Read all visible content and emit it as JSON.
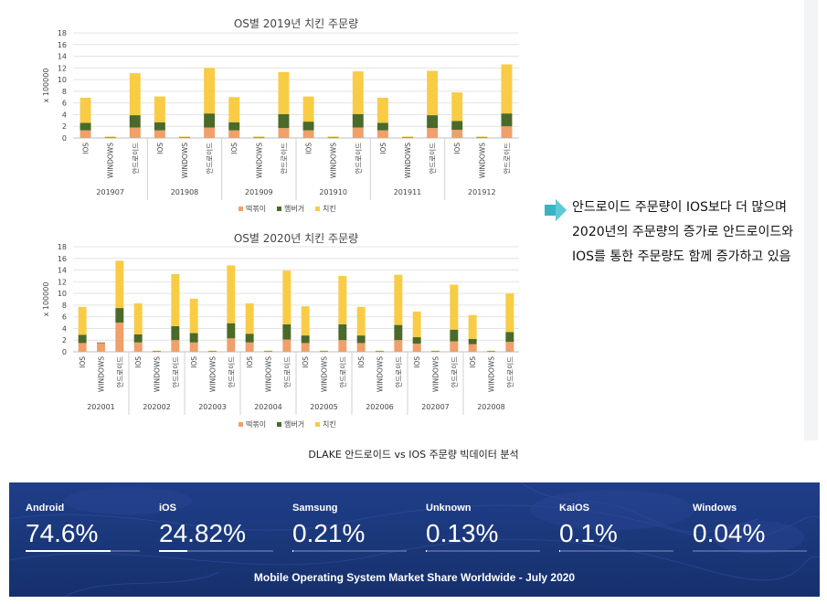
{
  "chart_data": [
    {
      "type": "bar",
      "stacked": true,
      "title": "OS별 2019년 치킨 주문량",
      "ylabel": "x 100000",
      "ylim": [
        0,
        18
      ],
      "yticks": [
        0,
        2,
        4,
        6,
        8,
        10,
        12,
        14,
        16,
        18
      ],
      "grid": true,
      "legend_position": "bottom",
      "groups": [
        "201907",
        "201908",
        "201909",
        "201910",
        "201911",
        "201912"
      ],
      "subcategories": [
        "IOS",
        "WINDOWS",
        "안드로이드"
      ],
      "series": [
        {
          "name": "떡볶이",
          "color": "#f0a06a",
          "values": [
            [
              1.3,
              0.05,
              1.8
            ],
            [
              1.3,
              0.05,
              1.8
            ],
            [
              1.3,
              0.05,
              1.7
            ],
            [
              1.3,
              0.05,
              1.8
            ],
            [
              1.3,
              0.05,
              1.7
            ],
            [
              1.4,
              0.05,
              2.0
            ]
          ]
        },
        {
          "name": "햄버거",
          "color": "#4a6a2a",
          "values": [
            [
              1.3,
              0.05,
              2.1
            ],
            [
              1.4,
              0.05,
              2.4
            ],
            [
              1.4,
              0.05,
              2.4
            ],
            [
              1.5,
              0.05,
              2.3
            ],
            [
              1.3,
              0.05,
              2.2
            ],
            [
              1.5,
              0.05,
              2.2
            ]
          ]
        },
        {
          "name": "치킨",
          "color": "#f8cc45",
          "values": [
            [
              4.3,
              0.15,
              7.2
            ],
            [
              4.4,
              0.15,
              7.8
            ],
            [
              4.3,
              0.15,
              7.2
            ],
            [
              4.3,
              0.15,
              7.3
            ],
            [
              4.3,
              0.15,
              7.6
            ],
            [
              4.9,
              0.15,
              8.4
            ]
          ]
        }
      ]
    },
    {
      "type": "bar",
      "stacked": true,
      "title": "OS별 2020년 치킨 주문량",
      "ylabel": "x 100000",
      "ylim": [
        0,
        18
      ],
      "yticks": [
        0,
        2,
        4,
        6,
        8,
        10,
        12,
        14,
        16,
        18
      ],
      "grid": true,
      "legend_position": "bottom",
      "groups": [
        "202001",
        "202002",
        "202003",
        "202004",
        "202005",
        "202006",
        "202007",
        "202008"
      ],
      "subcategories": [
        "IOS",
        "WINDOWS",
        "안드로이드"
      ],
      "series": [
        {
          "name": "떡볶이",
          "color": "#f0a06a",
          "values": [
            [
              1.5,
              1.5,
              5.0
            ],
            [
              1.6,
              0.05,
              2.0
            ],
            [
              1.6,
              0.05,
              2.3
            ],
            [
              1.6,
              0.05,
              2.1
            ],
            [
              1.5,
              0.05,
              2.0
            ],
            [
              1.5,
              0.05,
              2.0
            ],
            [
              1.4,
              0.05,
              1.8
            ],
            [
              1.3,
              0.05,
              1.7
            ]
          ]
        },
        {
          "name": "햄버거",
          "color": "#4a6a2a",
          "values": [
            [
              1.4,
              0.1,
              2.5
            ],
            [
              1.4,
              0.05,
              2.4
            ],
            [
              1.6,
              0.05,
              2.6
            ],
            [
              1.5,
              0.05,
              2.6
            ],
            [
              1.3,
              0.05,
              2.7
            ],
            [
              1.3,
              0.05,
              2.6
            ],
            [
              1.1,
              0.05,
              2.0
            ],
            [
              0.9,
              0.05,
              1.7
            ]
          ]
        },
        {
          "name": "치킨",
          "color": "#f8cc45",
          "values": [
            [
              4.8,
              0.0,
              8.1
            ],
            [
              5.3,
              0.1,
              8.9
            ],
            [
              5.9,
              0.1,
              9.9
            ],
            [
              5.2,
              0.1,
              9.2
            ],
            [
              5.0,
              0.1,
              8.3
            ],
            [
              4.9,
              0.1,
              8.6
            ],
            [
              4.4,
              0.1,
              7.7
            ],
            [
              4.1,
              0.1,
              6.6
            ]
          ]
        }
      ]
    }
  ],
  "callout": {
    "lines": [
      "안드로이드 주문량이 IOS보다 더 많으며",
      "2020년의 주문량의 증가로 안드로이드와",
      "IOS를 통한 주문량도 함께 증가하고 있음"
    ],
    "arrow_color": "#3bb3c7"
  },
  "caption": "DLAKE 안드로이드 vs IOS 주문량 빅데이터 분석",
  "banner": {
    "title": "Mobile Operating System Market Share Worldwide - July 2020",
    "stats": [
      {
        "name": "Android",
        "value": "74.6%",
        "share": 74.6
      },
      {
        "name": "iOS",
        "value": "24.82%",
        "share": 24.82
      },
      {
        "name": "Samsung",
        "value": "0.21%",
        "share": 0.21
      },
      {
        "name": "Unknown",
        "value": "0.13%",
        "share": 0.13
      },
      {
        "name": "KaiOS",
        "value": "0.1%",
        "share": 0.1
      },
      {
        "name": "Windows",
        "value": "0.04%",
        "share": 0.04
      }
    ],
    "background_color": "#1c3a80"
  }
}
